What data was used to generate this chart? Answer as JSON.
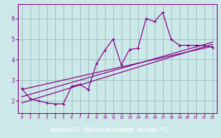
{
  "xlabel": "Windchill (Refroidissement éolien,°C)",
  "background_color": "#cce8e8",
  "line_color": "#880088",
  "grid_color": "#99bbbb",
  "label_bar_color": "#880088",
  "label_text_color": "#ffffff",
  "xlim": [
    -0.5,
    23.5
  ],
  "ylim": [
    1.4,
    6.7
  ],
  "xticks": [
    0,
    1,
    2,
    3,
    4,
    5,
    6,
    7,
    8,
    9,
    10,
    11,
    12,
    13,
    14,
    15,
    16,
    17,
    18,
    19,
    20,
    21,
    22,
    23
  ],
  "yticks": [
    2,
    3,
    4,
    5,
    6
  ],
  "scatter_x": [
    0,
    1,
    2,
    3,
    4,
    5,
    6,
    7,
    8,
    9,
    10,
    11,
    12,
    13,
    14,
    15,
    16,
    17,
    18,
    19,
    20,
    21,
    22,
    23
  ],
  "scatter_y": [
    2.6,
    2.1,
    2.0,
    1.9,
    1.85,
    1.85,
    2.7,
    2.8,
    2.55,
    3.8,
    4.45,
    5.0,
    3.75,
    4.5,
    4.55,
    6.0,
    5.85,
    6.3,
    5.0,
    4.7,
    4.7,
    4.7,
    4.7,
    4.6
  ],
  "trend1_x": [
    0,
    23
  ],
  "trend1_y": [
    1.9,
    4.75
  ],
  "trend2_x": [
    0,
    23
  ],
  "trend2_y": [
    2.2,
    4.85
  ],
  "trend3_x": [
    0,
    23
  ],
  "trend3_y": [
    2.55,
    4.65
  ]
}
